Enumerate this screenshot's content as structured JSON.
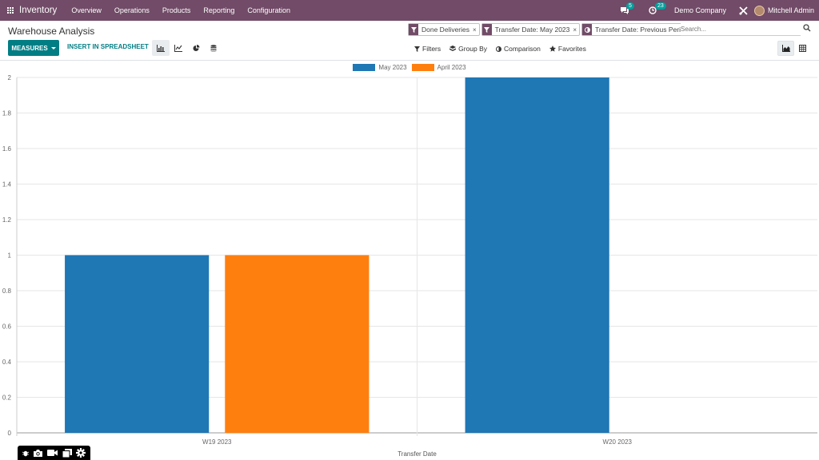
{
  "navbar": {
    "app_name": "Inventory",
    "menu": [
      "Overview",
      "Operations",
      "Products",
      "Reporting",
      "Configuration"
    ],
    "messages_count": "5",
    "activities_count": "23",
    "company": "Demo Company",
    "user": "Mitchell Admin"
  },
  "control_panel": {
    "title": "Warehouse Analysis",
    "facets": [
      {
        "icon": "filter-icon",
        "label": "Done Deliveries"
      },
      {
        "icon": "filter-icon",
        "label": "Transfer Date: May 2023"
      },
      {
        "icon": "comparison-icon",
        "label": "Transfer Date: Previous Period"
      }
    ],
    "search_placeholder": "Search...",
    "measures_label": "MEASURES",
    "spreadsheet_label": "INSERT IN SPREADSHEET",
    "filters_label": "Filters",
    "groupby_label": "Group By",
    "comparison_label": "Comparison",
    "favorites_label": "Favorites"
  },
  "chart_data": {
    "type": "bar",
    "categories": [
      "W19 2023",
      "W20 2023"
    ],
    "series": [
      {
        "name": "May 2023",
        "color": "#1f77b4",
        "values": [
          1,
          2
        ]
      },
      {
        "name": "April 2023",
        "color": "#ff7f0e",
        "values": [
          1,
          0
        ]
      }
    ],
    "xlabel": "Transfer Date",
    "ylabel": "",
    "ylim": [
      0,
      2
    ],
    "yticks": [
      "0",
      "0.2",
      "0.4",
      "0.6",
      "0.8",
      "1",
      "1.2",
      "1.4",
      "1.6",
      "1.8",
      "2"
    ],
    "legend": "top-center",
    "grid": true
  },
  "colors": {
    "brand": "#714b67",
    "accent": "#017e84"
  }
}
